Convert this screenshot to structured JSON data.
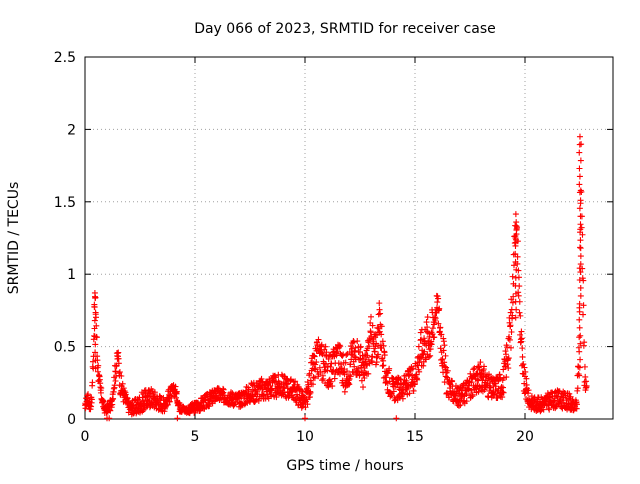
{
  "chart_data": {
    "type": "scatter",
    "title": "Day 066 of 2023, SRMTID for receiver case",
    "xlabel": "GPS time / hours",
    "ylabel": "SRMTID / TECUs",
    "xlim": [
      0,
      24
    ],
    "ylim": [
      0,
      2.5
    ],
    "xticks": [
      0,
      5,
      10,
      15,
      20
    ],
    "xtick_labels": [
      "0",
      "5",
      "10",
      "15",
      "20"
    ],
    "yticks": [
      0,
      0.5,
      1,
      1.5,
      2,
      2.5
    ],
    "ytick_labels": [
      "0",
      "0.5",
      "1",
      "1.5",
      "2",
      "2.5"
    ],
    "grid": true,
    "marker": "+",
    "series": [
      {
        "name": "SRMTID",
        "color": "#ff0000",
        "profile": {
          "x": [
            0.0,
            0.1,
            0.2,
            0.3,
            0.38,
            0.45,
            0.5,
            0.55,
            0.62,
            0.7,
            0.8,
            0.9,
            1.0,
            1.2,
            1.4,
            1.5,
            1.6,
            1.8,
            2.0,
            2.3,
            2.6,
            3.0,
            3.3,
            3.6,
            3.9,
            4.1,
            4.3,
            4.6,
            5.0,
            5.5,
            6.0,
            6.5,
            7.0,
            7.5,
            8.0,
            8.5,
            9.0,
            9.5,
            9.8,
            10.0,
            10.3,
            10.6,
            10.9,
            11.2,
            11.5,
            11.8,
            12.1,
            12.4,
            12.7,
            13.0,
            13.2,
            13.4,
            13.6,
            14.0,
            14.5,
            15.0,
            15.2,
            15.5,
            15.8,
            16.0,
            16.2,
            16.4,
            16.6,
            17.0,
            17.5,
            18.0,
            18.5,
            19.0,
            19.2,
            19.4,
            19.55,
            19.65,
            19.75,
            19.9,
            20.2,
            20.6,
            21.0,
            21.5,
            22.0,
            22.2,
            22.35,
            22.45,
            22.55,
            22.6,
            22.7,
            22.8
          ],
          "y": [
            0.08,
            0.15,
            0.1,
            0.12,
            0.45,
            0.86,
            0.72,
            0.45,
            0.3,
            0.2,
            0.12,
            0.06,
            0.07,
            0.1,
            0.35,
            0.45,
            0.25,
            0.15,
            0.08,
            0.08,
            0.12,
            0.15,
            0.12,
            0.1,
            0.18,
            0.2,
            0.08,
            0.06,
            0.08,
            0.12,
            0.17,
            0.15,
            0.13,
            0.18,
            0.2,
            0.22,
            0.23,
            0.2,
            0.15,
            0.1,
            0.3,
            0.42,
            0.38,
            0.32,
            0.45,
            0.3,
            0.4,
            0.45,
            0.3,
            0.55,
            0.45,
            0.68,
            0.35,
            0.2,
            0.22,
            0.3,
            0.45,
            0.55,
            0.6,
            0.82,
            0.55,
            0.3,
            0.2,
            0.15,
            0.22,
            0.3,
            0.2,
            0.25,
            0.45,
            0.7,
            1.35,
            1.2,
            0.8,
            0.3,
            0.12,
            0.1,
            0.12,
            0.14,
            0.12,
            0.08,
            0.1,
            0.45,
            1.85,
            1.2,
            0.35,
            0.2
          ],
          "spread": [
            0.02,
            0.05,
            0.04,
            0.05,
            0.1,
            0.04,
            0.08,
            0.08,
            0.06,
            0.05,
            0.04,
            0.02,
            0.03,
            0.04,
            0.08,
            0.04,
            0.08,
            0.06,
            0.04,
            0.06,
            0.07,
            0.07,
            0.06,
            0.05,
            0.05,
            0.04,
            0.03,
            0.02,
            0.04,
            0.05,
            0.05,
            0.05,
            0.05,
            0.07,
            0.08,
            0.08,
            0.08,
            0.07,
            0.08,
            0.05,
            0.12,
            0.14,
            0.14,
            0.12,
            0.14,
            0.12,
            0.14,
            0.14,
            0.12,
            0.16,
            0.14,
            0.16,
            0.12,
            0.08,
            0.08,
            0.1,
            0.14,
            0.16,
            0.18,
            0.06,
            0.18,
            0.12,
            0.08,
            0.06,
            0.1,
            0.1,
            0.08,
            0.1,
            0.14,
            0.18,
            0.08,
            0.16,
            0.2,
            0.12,
            0.05,
            0.05,
            0.06,
            0.06,
            0.06,
            0.04,
            0.05,
            0.12,
            0.12,
            0.3,
            0.12,
            0.06
          ]
        }
      }
    ],
    "zero_points_x": [
      1.0,
      1.1,
      4.2,
      10.0,
      14.15
    ]
  }
}
